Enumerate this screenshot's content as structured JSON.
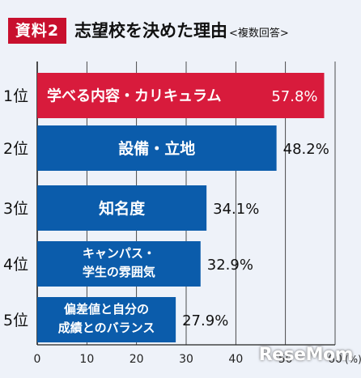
{
  "badge": "資料2",
  "title": "志望校を決めた理由",
  "subtitle": "<複数回答>",
  "unit_label": "(%)",
  "watermark": "ReseMom",
  "colors": {
    "highlight": "#d81b3c",
    "bar": "#0b5cab",
    "grid": "#222222",
    "badge": "#c8102e"
  },
  "chart_data": {
    "type": "bar",
    "orientation": "horizontal",
    "title": "志望校を決めた理由",
    "subtitle": "<複数回答>",
    "xlabel": "(%)",
    "xlim": [
      0,
      60
    ],
    "xticks": [
      0,
      10,
      20,
      30,
      40,
      50,
      60
    ],
    "grid": true,
    "ranks": [
      "1位",
      "2位",
      "3位",
      "4位",
      "5位"
    ],
    "categories": [
      "学べる内容・カリキュラム",
      "設備・立地",
      "知名度",
      "キャンパス・学生の雰囲気",
      "偏差値と自分の成績とのバランス"
    ],
    "category_lines": [
      [
        "学べる内容・カリキュラム"
      ],
      [
        "設備・立地"
      ],
      [
        "知名度"
      ],
      [
        "キャンパス・",
        "学生の雰囲気"
      ],
      [
        "偏差値と自分の",
        "成績とのバランス"
      ]
    ],
    "values": [
      57.8,
      48.2,
      34.1,
      32.9,
      27.9
    ],
    "value_labels": [
      "57.8%",
      "48.2%",
      "34.1%",
      "32.9%",
      "27.9%"
    ],
    "highlight_index": 0
  }
}
